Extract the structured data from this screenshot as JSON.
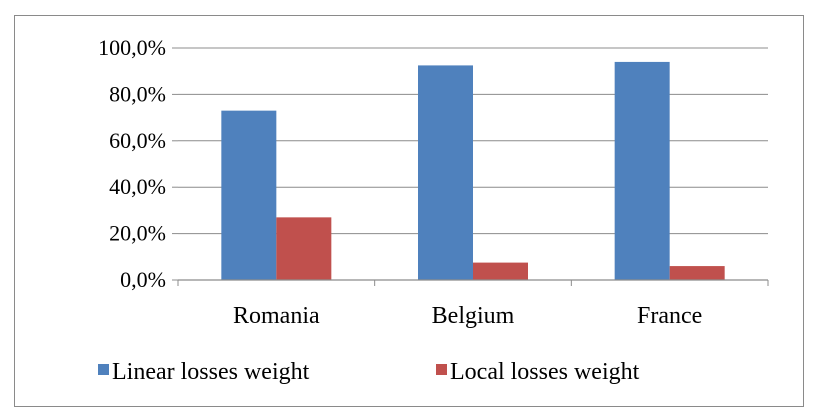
{
  "chart_data": {
    "type": "bar",
    "categories": [
      "Romania",
      "Belgium",
      "France"
    ],
    "series": [
      {
        "name": "Linear losses weight",
        "color": "#4F81BD",
        "values": [
          73.0,
          92.5,
          94.0
        ]
      },
      {
        "name": "Local losses weight",
        "color": "#C0504D",
        "values": [
          27.0,
          7.5,
          6.0
        ]
      }
    ],
    "yticks": [
      0,
      20,
      40,
      60,
      80,
      100
    ],
    "ytick_labels": [
      "0,0%",
      "20,0%",
      "40,0%",
      "60,0%",
      "80,0%",
      "100,0%"
    ],
    "ylim": [
      0,
      100
    ],
    "grid": true,
    "legend_position": "bottom",
    "title": "",
    "xlabel": "",
    "ylabel": ""
  }
}
